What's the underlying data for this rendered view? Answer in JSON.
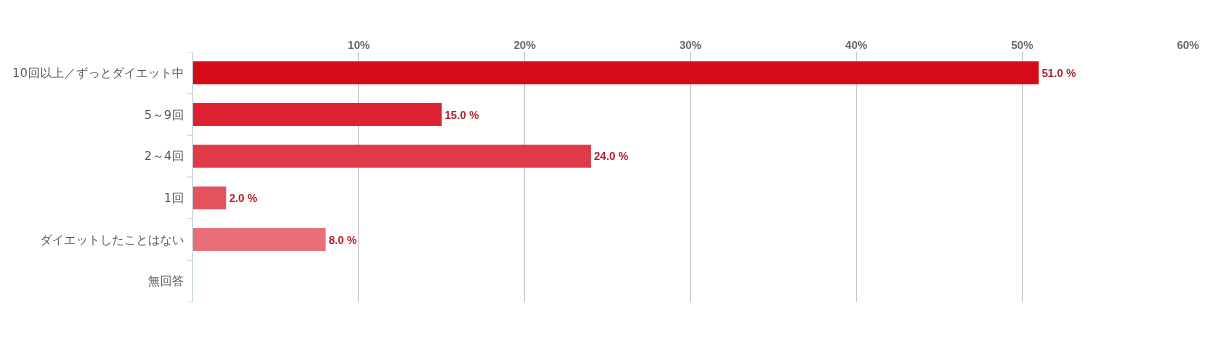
{
  "chart_data": {
    "type": "bar",
    "orientation": "horizontal",
    "categories": [
      "10回以上／ずっとダイエット中",
      "5～9回",
      "2～4回",
      "1回",
      "ダイエットしたことはない",
      "無回答"
    ],
    "values": [
      51,
      15,
      24,
      2,
      8,
      null
    ],
    "colors": [
      "#d60b18",
      "#dc2130",
      "#e03a48",
      "#e4525e",
      "#e96e78",
      "#ee8a92"
    ],
    "value_labels": [
      "51.0 %",
      "15.0 %",
      "24.0 %",
      "2.0 %",
      "8.0 %",
      null
    ],
    "xlim": [
      0,
      60
    ],
    "xticks": [
      {
        "value": 0,
        "label": null
      },
      {
        "value": 10,
        "label": "10%"
      },
      {
        "value": 20,
        "label": "20%"
      },
      {
        "value": 30,
        "label": "30%"
      },
      {
        "value": 40,
        "label": "40%"
      },
      {
        "value": 50,
        "label": "50%"
      },
      {
        "value": 60,
        "label": "60%"
      }
    ],
    "grid": "x",
    "legend": false
  }
}
